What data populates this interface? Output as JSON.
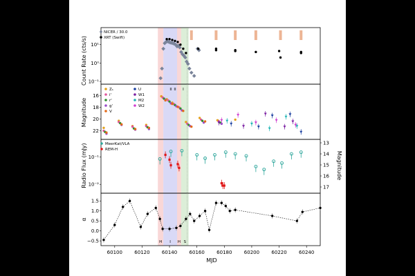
{
  "figure": {
    "xlabel": "MJD",
    "xticks": [
      60100,
      60120,
      60140,
      60160,
      60180,
      60200,
      60220,
      60240
    ],
    "xlim": [
      60090,
      60250
    ]
  },
  "bands": [
    {
      "from": 60131.5,
      "to": 60135.5,
      "color": "#f4b6b6",
      "label": "H"
    },
    {
      "from": 60135.5,
      "to": 60145.5,
      "color": "#b9b9ef",
      "label": "I"
    },
    {
      "from": 60145.5,
      "to": 60148.5,
      "color": "#f4b6b6",
      "label": "H"
    },
    {
      "from": 60148.5,
      "to": 60154.0,
      "color": "#bfe0b8",
      "label": "S"
    }
  ],
  "band_ticks_top": [
    "II",
    "II",
    "I"
  ],
  "panels": {
    "count_rate": {
      "ylabel": "Count Rate (cts/s)",
      "yticks": [
        "10¹",
        "10⁰",
        "10⁻¹"
      ],
      "legend": [
        "NICER / 30.0",
        "XRT (Swift)"
      ]
    },
    "magnitude": {
      "ylabel": "Magnitude",
      "yticks": [
        "16",
        "18",
        "20",
        "22"
      ],
      "legend_left": [
        "Zₛ",
        "i'",
        "r'",
        "g'",
        "V"
      ],
      "legend_right": [
        "U",
        "W1",
        "M2",
        "W2"
      ]
    },
    "radio": {
      "ylabel": "Radio Flux (mJy)",
      "ylabel_right": "Magnitude",
      "yticks": [
        "10⁻¹",
        "10⁻²"
      ],
      "yticks_right": [
        "13",
        "14",
        "15",
        "16",
        "17"
      ],
      "legend": [
        "MeerKat/VLA",
        "REM-H"
      ]
    },
    "alpha": {
      "ylabel": "α",
      "yticks": [
        "1.5",
        "1.0",
        "0.5",
        "0.0",
        "−0.5"
      ]
    }
  },
  "chart_data": {
    "type": "scatter",
    "xlabel": "MJD",
    "xlim": [
      60090,
      60250
    ],
    "panels": [
      {
        "name": "count_rate",
        "ylabel": "Count Rate (cts/s)",
        "yscale": "log",
        "ylim": [
          0.1,
          60
        ],
        "series": [
          {
            "name": "NICER / 30.0",
            "x": [
              60133.5,
              60134.5,
              60135.5,
              60136.5,
              60137.5,
              60138.5,
              60139.5,
              60140.5,
              60141.5,
              60142.5,
              60143.5,
              60144.5,
              60145.5,
              60146.5,
              60147.5,
              60148.5,
              60149.5,
              60150.5,
              60151.5,
              60152.5,
              60153.5,
              60154.5,
              60156,
              60158,
              60160.5,
              60161.5
            ],
            "y": [
              0.15,
              0.5,
              6,
              12,
              14,
              15,
              14,
              13,
              12.5,
              12,
              11,
              10,
              8,
              9,
              7,
              4,
              3,
              2.5,
              2,
              1.2,
              0.9,
              0.5,
              0.3,
              0.2,
              6,
              5
            ]
          },
          {
            "name": "XRT (Swift)",
            "x": [
              60138,
              60140,
              60142,
              60144,
              60146,
              60148,
              60150,
              60152,
              60161,
              60174,
              60174,
              60188,
              60188,
              60203,
              60220,
              60221,
              60236,
              60236
            ],
            "y": [
              20,
              20,
              18,
              16,
              14,
              10,
              6,
              3.5,
              6,
              5,
              6,
              4.5,
              5,
              4,
              4.5,
              2,
              3.5,
              4
            ]
          }
        ]
      },
      {
        "name": "magnitude",
        "ylabel": "Magnitude",
        "yinvert": true,
        "ylim": [
          23,
          14.5
        ],
        "series": [
          {
            "name": "Zs",
            "x": [
              60092,
              60103,
              60113,
              60123,
              60134,
              60138,
              60142,
              60146,
              60152,
              60162,
              60175,
              60188
            ],
            "y": [
              21.5,
              20.3,
              21.2,
              21,
              16.1,
              16.6,
              17.2,
              17.9,
              20.5,
              19.8,
              20.2,
              20.1
            ]
          },
          {
            "name": "i'",
            "x": [
              60092,
              60103,
              60113,
              60123,
              60135,
              60139,
              60143,
              60147,
              60153,
              60163,
              60176
            ],
            "y": [
              22,
              20.5,
              21.3,
              21.2,
              16.3,
              16.8,
              17.4,
              18.0,
              20.8,
              20.1,
              20.4
            ]
          },
          {
            "name": "r'",
            "x": [
              60093,
              60104,
              60114,
              60124,
              60136,
              60140,
              60144,
              60148,
              60154,
              60164,
              60177
            ],
            "y": [
              22.2,
              20.7,
              21.6,
              21.4,
              16.5,
              17.0,
              17.6,
              18.2,
              21.0,
              20.3,
              20.6
            ]
          },
          {
            "name": "g'",
            "x": [
              60094,
              60105,
              60115,
              60125,
              60137,
              60141,
              60145,
              60149,
              60155,
              60165,
              60178
            ],
            "y": [
              22.5,
              21.0,
              21.8,
              21.7,
              16.7,
              17.3,
              17.8,
              18.5,
              21.2,
              20.6,
              20.8
            ]
          },
          {
            "name": "V",
            "x": [
              60094,
              60105,
              60115,
              60125,
              60137,
              60142,
              60146,
              60150,
              60156,
              60166
            ],
            "y": [
              22.3,
              20.9,
              21.7,
              21.5,
              16.8,
              17.4,
              17.9,
              18.6,
              21.3,
              20.4
            ]
          },
          {
            "name": "U",
            "x": [
              60185,
              60205,
              60215,
              60228,
              60236
            ],
            "y": [
              20.8,
              21.3,
              19.4,
              19.2,
              22.2
            ]
          },
          {
            "name": "W1",
            "x": [
              60176,
              60194,
              60210,
              60224,
              60230
            ],
            "y": [
              20.6,
              21.2,
              19.1,
              21.3,
              20.4
            ]
          },
          {
            "name": "M2",
            "x": [
              60182,
              60200,
              60213,
              60225,
              60233
            ],
            "y": [
              20.3,
              20.8,
              21.6,
              19.6,
              21.2
            ]
          },
          {
            "name": "W2",
            "x": [
              60178,
              60190,
              60203,
              60218,
              60232
            ],
            "y": [
              20.2,
              19.3,
              20.6,
              20.2,
              21.0
            ]
          }
        ]
      },
      {
        "name": "radio",
        "ylabel": "Radio Flux (mJy)",
        "yscale": "log",
        "ylim": [
          0.006,
          0.35
        ],
        "ylabel_right": "Magnitude",
        "series": [
          {
            "name": "MeerKat/VLA",
            "x": [
              60133,
              60141,
              60149,
              60160,
              60166,
              60173,
              60181,
              60188,
              60196,
              60203,
              60209,
              60216,
              60222,
              60229,
              60236
            ],
            "y": [
              0.085,
              0.16,
              0.17,
              0.12,
              0.09,
              0.12,
              0.15,
              0.13,
              0.11,
              0.045,
              0.035,
              0.07,
              0.06,
              0.13,
              0.15
            ]
          },
          {
            "name": "REM-H",
            "x": [
              60137,
              60140,
              60141,
              60146,
              60147,
              60178,
              60179,
              60180
            ],
            "y": [
              0.12,
              0.08,
              0.05,
              0.055,
              0.04,
              0.011,
              0.009,
              0.009
            ]
          }
        ]
      },
      {
        "name": "alpha",
        "ylabel": "α",
        "ylim": [
          -0.6,
          1.75
        ],
        "series": [
          {
            "name": "α",
            "x": [
              60092,
              60100,
              60106,
              60111,
              60119,
              60124,
              60130,
              60133,
              60135,
              60140,
              60145,
              60148,
              60152,
              60155,
              60158,
              60162,
              60166,
              60169,
              60174,
              60178,
              60181,
              60184,
              60188,
              60215,
              60233,
              60237,
              60250
            ],
            "y": [
              -0.45,
              0.3,
              1.2,
              1.5,
              0.2,
              0.85,
              1.15,
              0.6,
              0.1,
              0.1,
              0.15,
              0.25,
              0.6,
              0.85,
              0.5,
              0.75,
              1.0,
              0.05,
              1.4,
              1.4,
              1.25,
              1.0,
              1.05,
              0.75,
              0.5,
              0.95,
              1.15
            ]
          }
        ]
      }
    ]
  }
}
